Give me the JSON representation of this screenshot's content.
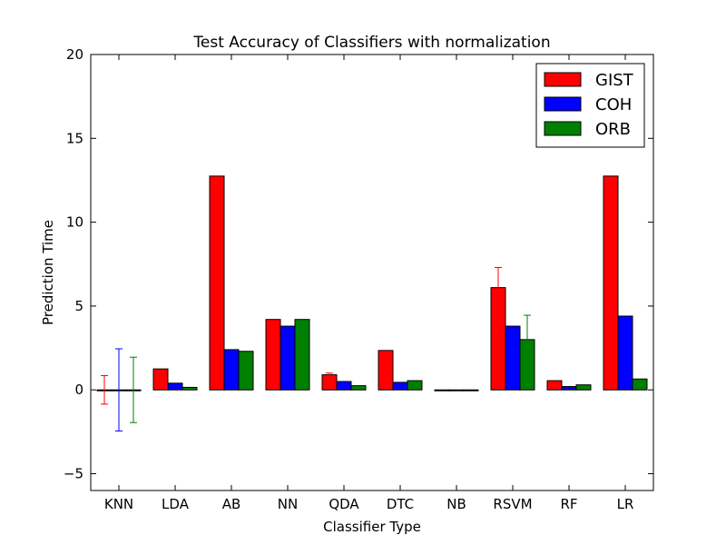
{
  "chart_data": {
    "type": "bar",
    "title": "Test Accuracy of Classifiers with normalization",
    "xlabel": "Classifier Type",
    "ylabel": "Prediction Time",
    "ylim": [
      -6,
      20
    ],
    "yticks": [
      -5,
      0,
      5,
      10,
      15,
      20
    ],
    "ytick_labels": [
      "−5",
      "0",
      "5",
      "10",
      "15",
      "20"
    ],
    "categories": [
      "KNN",
      "LDA",
      "AB",
      "NN",
      "QDA",
      "DTC",
      "NB",
      "RSVM",
      "RF",
      "LR"
    ],
    "series": [
      {
        "name": "GIST",
        "color": "#ff0000",
        "values": [
          0.0,
          1.25,
          12.75,
          4.2,
          0.9,
          2.35,
          0.0,
          6.1,
          0.55,
          12.75
        ],
        "errors": [
          0.85,
          0,
          0,
          0,
          0.1,
          0,
          0,
          1.2,
          0,
          0
        ],
        "error_color": "#ff0000"
      },
      {
        "name": "COH",
        "color": "#0000ff",
        "values": [
          0.0,
          0.4,
          2.4,
          3.8,
          0.5,
          0.45,
          0.0,
          3.8,
          0.2,
          4.4
        ],
        "errors": [
          2.45,
          0,
          0,
          0,
          0,
          0,
          0,
          0,
          0,
          0
        ],
        "error_color": "#0000ff"
      },
      {
        "name": "ORB",
        "color": "#008000",
        "values": [
          0.0,
          0.15,
          2.3,
          4.2,
          0.25,
          0.55,
          0.0,
          3.0,
          0.3,
          0.65
        ],
        "errors": [
          1.95,
          0,
          0,
          0,
          0,
          0,
          0,
          1.45,
          0,
          0
        ],
        "error_color": "#008000"
      }
    ],
    "error_cap_colors": [
      [
        "#0000ff",
        "#008000",
        "#ff0000"
      ],
      [],
      [
        "#ff0000"
      ],
      [],
      [
        "#0000ff"
      ],
      [],
      [],
      [
        "#0000ff",
        "#008000",
        "#ff0000"
      ],
      [],
      []
    ],
    "legend_location": "top-right",
    "grid": false
  }
}
